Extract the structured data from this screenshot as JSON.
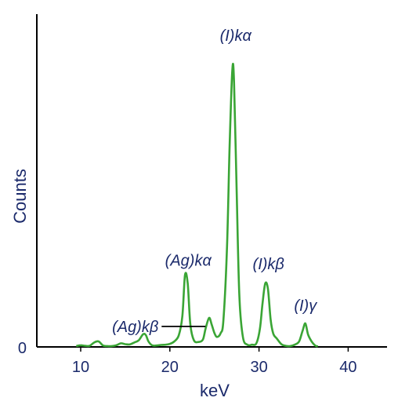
{
  "chart_data": {
    "type": "line",
    "xlabel": "keV",
    "ylabel": "Counts",
    "xlim": [
      5,
      45
    ],
    "ylim": [
      0,
      100
    ],
    "x_ticks": [
      "10",
      "20",
      "30",
      "40"
    ],
    "y_ticks": [
      "0"
    ],
    "series": [
      {
        "color": "#3aa535",
        "x": [
          9.5,
          10.0,
          10.5,
          11.0,
          11.5,
          12.0,
          12.5,
          13.0,
          13.5,
          14.0,
          14.5,
          15.0,
          15.5,
          16.0,
          16.5,
          17.0,
          17.3,
          17.6,
          18.0,
          18.5,
          19.0,
          19.5,
          20.0,
          20.5,
          21.0,
          21.4,
          21.7,
          22.0,
          22.3,
          22.7,
          23.2,
          23.7,
          24.0,
          24.4,
          24.7,
          25.0,
          25.3,
          25.7,
          26.0,
          26.4,
          26.7,
          27.0,
          27.2,
          27.5,
          27.8,
          28.2,
          28.7,
          29.2,
          29.7,
          30.1,
          30.4,
          30.7,
          31.0,
          31.3,
          31.6,
          32.0,
          32.5,
          33.0,
          33.5,
          34.0,
          34.5,
          34.9,
          35.2,
          35.5,
          35.9,
          36.3,
          36.6
        ],
        "y": [
          0.3,
          0.6,
          0.4,
          0.4,
          1.6,
          2.0,
          0.5,
          0.3,
          0.3,
          0.6,
          1.3,
          1.0,
          0.9,
          1.6,
          2.4,
          4.6,
          4.3,
          2.0,
          0.6,
          0.5,
          0.7,
          0.8,
          1.1,
          2.0,
          4.2,
          11.0,
          26.0,
          23.0,
          8.0,
          2.4,
          1.8,
          2.6,
          6.5,
          10.5,
          8.0,
          5.0,
          3.6,
          5.0,
          9.5,
          35.0,
          72.0,
          100.0,
          96.0,
          55.0,
          18.0,
          3.5,
          0.8,
          0.8,
          1.3,
          6.5,
          16.0,
          23.0,
          21.0,
          10.0,
          4.8,
          3.0,
          1.0,
          0.4,
          0.3,
          0.8,
          2.0,
          6.0,
          8.5,
          4.5,
          2.0,
          0.5,
          0.2
        ]
      }
    ],
    "annotations": [
      {
        "label": "(I)kα",
        "x": 27.2,
        "y": 100.0
      },
      {
        "label": "(Ag)kα",
        "x": 21.8,
        "y": 26.0
      },
      {
        "label": "(I)kβ",
        "x": 30.8,
        "y": 23.0
      },
      {
        "label": "(I)γ",
        "x": 35.2,
        "y": 8.5
      },
      {
        "label": "(Ag)kβ",
        "x": 24.7,
        "y": 8.0,
        "leader_line": true
      }
    ]
  }
}
